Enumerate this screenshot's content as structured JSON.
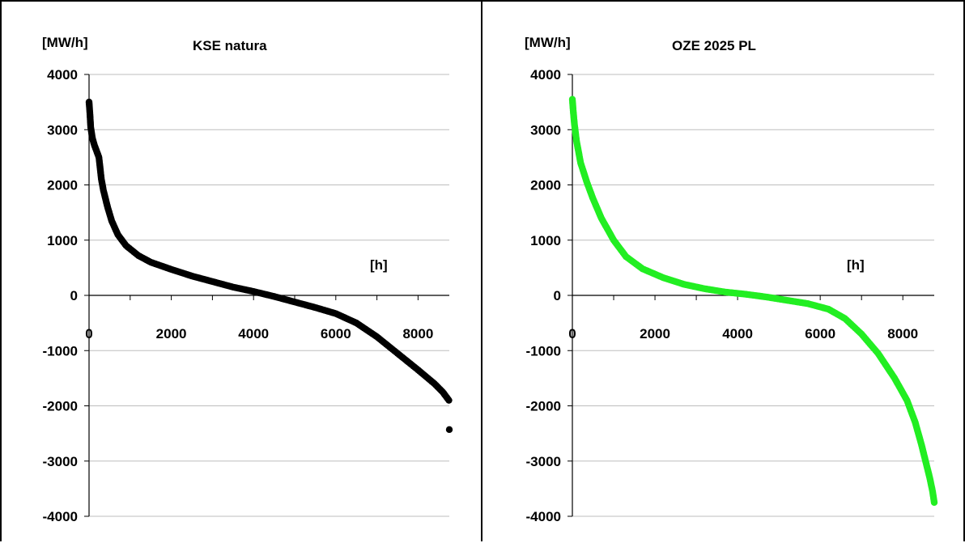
{
  "chart_data": [
    {
      "type": "scatter",
      "title": "KSE natura",
      "ylabel": "[MW/h]",
      "xlabel": "[h]",
      "xlim": [
        0,
        8760
      ],
      "ylim": [
        -4000,
        4000
      ],
      "x_ticks": [
        "0",
        "2000",
        "4000",
        "6000",
        "8000"
      ],
      "y_ticks": [
        "4000",
        "3000",
        "2000",
        "1000",
        "0",
        "-1000",
        "-2000",
        "-3000",
        "-4000"
      ],
      "grid": "horizontal",
      "series_color": "#000000",
      "series": [
        {
          "points": [
            [
              0,
              3500
            ],
            [
              20,
              3300
            ],
            [
              40,
              3050
            ],
            [
              80,
              2850
            ],
            [
              130,
              2720
            ],
            [
              180,
              2620
            ],
            [
              240,
              2500
            ],
            [
              300,
              2100
            ],
            [
              350,
              1900
            ],
            [
              450,
              1600
            ],
            [
              550,
              1350
            ],
            [
              700,
              1100
            ],
            [
              900,
              900
            ],
            [
              1200,
              720
            ],
            [
              1500,
              600
            ],
            [
              2000,
              470
            ],
            [
              2500,
              350
            ],
            [
              3000,
              250
            ],
            [
              3500,
              150
            ],
            [
              4000,
              70
            ],
            [
              4500,
              -20
            ],
            [
              5000,
              -120
            ],
            [
              5500,
              -220
            ],
            [
              6000,
              -330
            ],
            [
              6500,
              -500
            ],
            [
              7000,
              -750
            ],
            [
              7500,
              -1050
            ],
            [
              8000,
              -1350
            ],
            [
              8400,
              -1600
            ],
            [
              8600,
              -1750
            ],
            [
              8700,
              -1850
            ],
            [
              8750,
              -1900
            ],
            [
              8760,
              -2430
            ]
          ]
        }
      ]
    },
    {
      "type": "scatter",
      "title": "OZE 2025 PL",
      "ylabel": "[MW/h]",
      "xlabel": "[h]",
      "xlim": [
        0,
        8760
      ],
      "ylim": [
        -4000,
        4000
      ],
      "x_ticks": [
        "0",
        "2000",
        "4000",
        "6000",
        "8000"
      ],
      "y_ticks": [
        "4000",
        "3000",
        "2000",
        "1000",
        "0",
        "-1000",
        "-2000",
        "-3000",
        "-4000"
      ],
      "grid": "horizontal",
      "series_color": "#22ee22",
      "series": [
        {
          "points": [
            [
              0,
              3550
            ],
            [
              20,
              3350
            ],
            [
              50,
              3100
            ],
            [
              100,
              2800
            ],
            [
              200,
              2400
            ],
            [
              350,
              2050
            ],
            [
              500,
              1750
            ],
            [
              700,
              1400
            ],
            [
              1000,
              1000
            ],
            [
              1300,
              700
            ],
            [
              1700,
              480
            ],
            [
              2200,
              320
            ],
            [
              2700,
              200
            ],
            [
              3200,
              120
            ],
            [
              3700,
              60
            ],
            [
              4200,
              20
            ],
            [
              4700,
              -30
            ],
            [
              5200,
              -90
            ],
            [
              5700,
              -150
            ],
            [
              6200,
              -250
            ],
            [
              6600,
              -420
            ],
            [
              7000,
              -700
            ],
            [
              7400,
              -1050
            ],
            [
              7800,
              -1500
            ],
            [
              8100,
              -1900
            ],
            [
              8300,
              -2300
            ],
            [
              8450,
              -2700
            ],
            [
              8550,
              -3000
            ],
            [
              8650,
              -3300
            ],
            [
              8720,
              -3550
            ],
            [
              8760,
              -3750
            ]
          ]
        }
      ]
    }
  ]
}
